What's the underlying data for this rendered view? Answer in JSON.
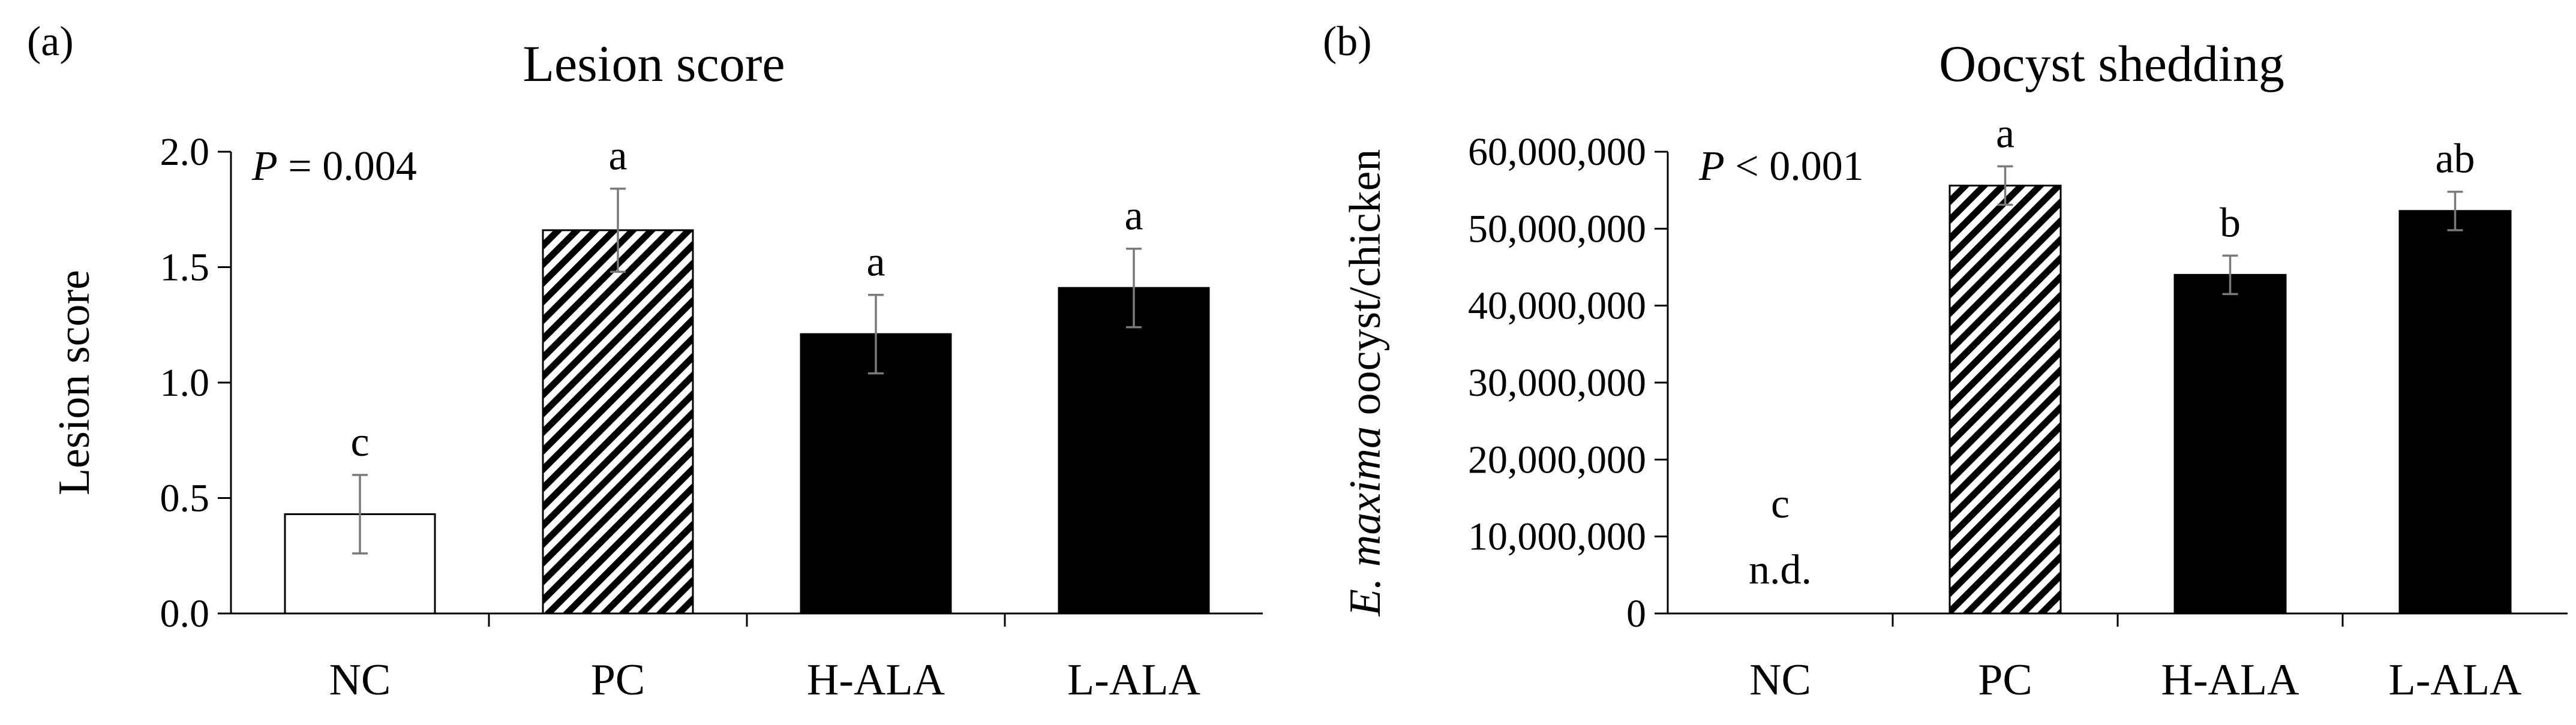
{
  "chart_data": [
    {
      "type": "bar",
      "panel_label": "(a)",
      "title": "Lesion score",
      "ylabel": "Lesion score",
      "xlabel": "",
      "categories": [
        "NC",
        "PC",
        "H-ALA",
        "L-ALA"
      ],
      "values": [
        0.43,
        1.66,
        1.21,
        1.41
      ],
      "errors": [
        0.17,
        0.18,
        0.17,
        0.17
      ],
      "letters": [
        "c",
        "a",
        "a",
        "a"
      ],
      "fills": [
        "white",
        "hatched",
        "black",
        "black"
      ],
      "ylim": [
        0,
        2.0
      ],
      "yticks": [
        0,
        0.5,
        1.0,
        1.5,
        2.0
      ],
      "ytick_labels": [
        "0.0",
        "0.5",
        "1.0",
        "1.5",
        "2.0"
      ],
      "p_value": {
        "symbol": "P",
        "text": " = 0.004"
      },
      "na_labels": [
        "",
        "",
        "",
        ""
      ],
      "grid": false
    },
    {
      "type": "bar",
      "panel_label": "(b)",
      "title": "Oocyst shedding",
      "ylabel_italic": "E. maxima",
      "ylabel": " oocyst/chicken",
      "xlabel": "",
      "categories": [
        "NC",
        "PC",
        "H-ALA",
        "L-ALA"
      ],
      "values": [
        0,
        55600000,
        44000000,
        52300000
      ],
      "errors": [
        0,
        2500000,
        2500000,
        2500000
      ],
      "letters": [
        "c",
        "a",
        "b",
        "ab"
      ],
      "fills": [
        "none",
        "hatched",
        "black",
        "black"
      ],
      "ylim": [
        0,
        60000000
      ],
      "yticks": [
        0,
        10000000,
        20000000,
        30000000,
        40000000,
        50000000,
        60000000
      ],
      "ytick_labels": [
        "0",
        "10,000,000",
        "20,000,000",
        "30,000,000",
        "40,000,000",
        "50,000,000",
        "60,000,000"
      ],
      "p_value": {
        "symbol": "P",
        "text": " < 0.001"
      },
      "na_labels": [
        "n.d.",
        "",
        "",
        ""
      ],
      "grid": false
    }
  ]
}
